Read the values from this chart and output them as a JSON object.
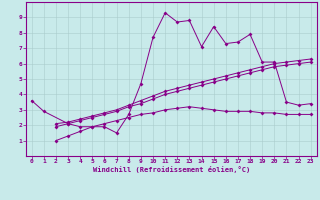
{
  "xlabel": "Windchill (Refroidissement éolien,°C)",
  "bg_color": "#c8eaea",
  "grid_color": "#aacccc",
  "line_color": "#880088",
  "x": [
    0,
    1,
    2,
    3,
    4,
    5,
    6,
    7,
    8,
    9,
    10,
    11,
    12,
    13,
    14,
    15,
    16,
    17,
    18,
    19,
    20,
    21,
    22,
    23
  ],
  "series1": [
    3.6,
    2.9,
    null,
    2.1,
    1.9,
    1.9,
    1.9,
    1.5,
    2.7,
    4.7,
    7.7,
    9.3,
    8.7,
    8.8,
    7.1,
    8.4,
    7.3,
    7.4,
    7.9,
    6.1,
    6.1,
    3.5,
    3.3,
    3.4
  ],
  "series2": [
    null,
    null,
    2.1,
    2.2,
    2.4,
    2.6,
    2.8,
    3.0,
    3.3,
    3.6,
    3.9,
    4.2,
    4.4,
    4.6,
    4.8,
    5.0,
    5.2,
    5.4,
    5.6,
    5.8,
    6.0,
    6.1,
    6.2,
    6.3
  ],
  "series3": [
    null,
    null,
    1.9,
    2.1,
    2.3,
    2.5,
    2.7,
    2.9,
    3.2,
    3.4,
    3.7,
    4.0,
    4.2,
    4.4,
    4.6,
    4.8,
    5.0,
    5.2,
    5.4,
    5.6,
    5.8,
    5.9,
    6.0,
    6.1
  ],
  "series4": [
    null,
    null,
    1.0,
    1.3,
    1.6,
    1.9,
    2.1,
    2.3,
    2.5,
    2.7,
    2.8,
    3.0,
    3.1,
    3.2,
    3.1,
    3.0,
    2.9,
    2.9,
    2.9,
    2.8,
    2.8,
    2.7,
    2.7,
    2.7
  ],
  "ylim": [
    0,
    10
  ],
  "xlim": [
    -0.5,
    23.5
  ],
  "yticks": [
    1,
    2,
    3,
    4,
    5,
    6,
    7,
    8,
    9
  ],
  "xticks": [
    0,
    1,
    2,
    3,
    4,
    5,
    6,
    7,
    8,
    9,
    10,
    11,
    12,
    13,
    14,
    15,
    16,
    17,
    18,
    19,
    20,
    21,
    22,
    23
  ],
  "figsize": [
    3.2,
    2.0
  ],
  "dpi": 100
}
